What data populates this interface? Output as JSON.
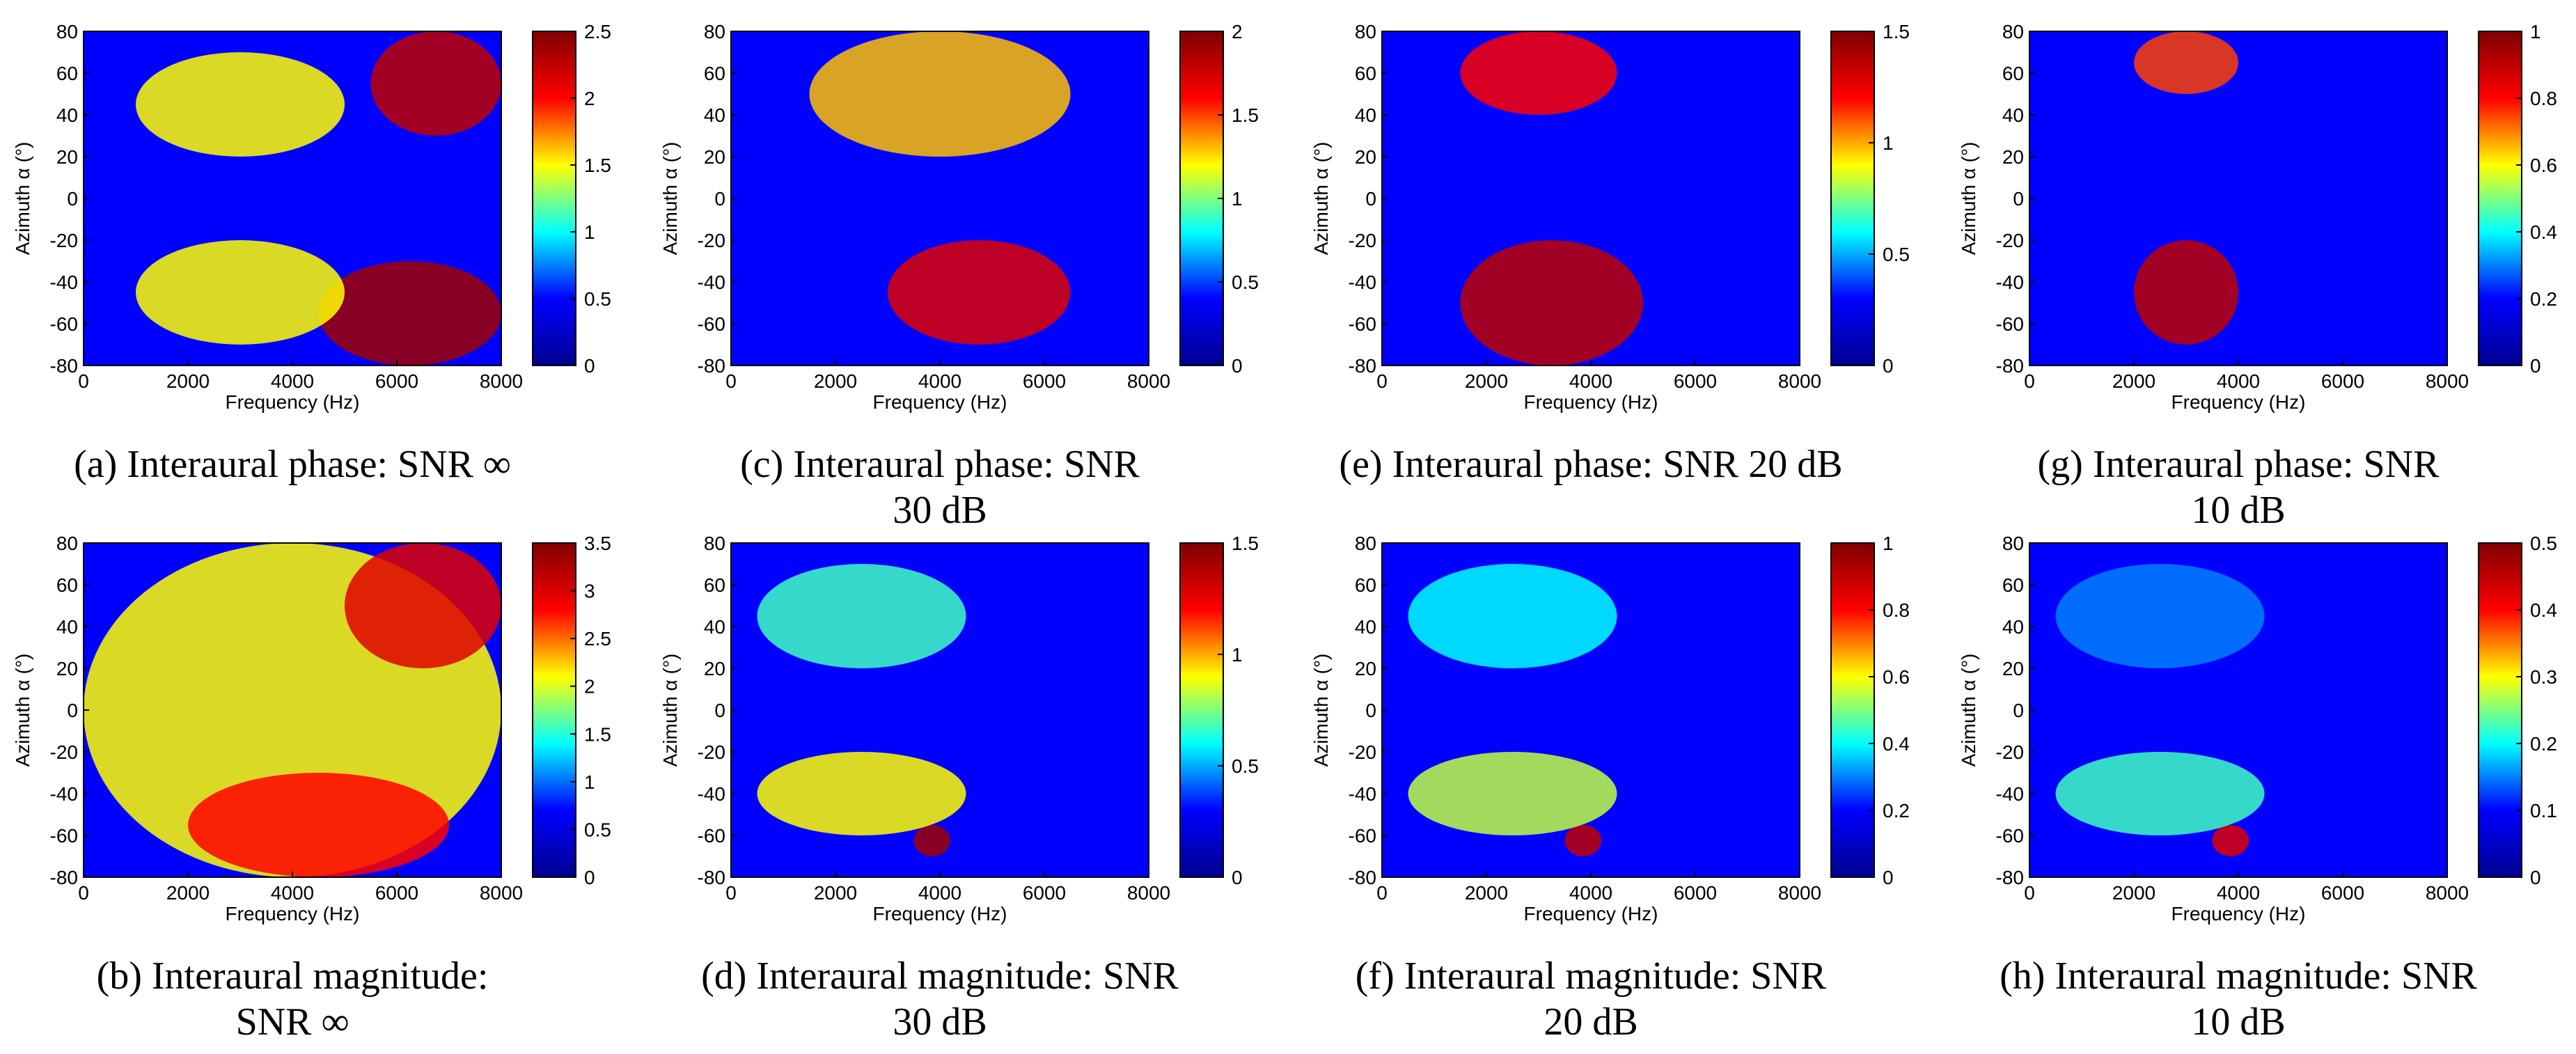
{
  "colormap": {
    "name": "jet",
    "stops": [
      "#00008f",
      "#0000ff",
      "#00ffff",
      "#ffff00",
      "#ff0000",
      "#800000"
    ]
  },
  "chart_data": [
    {
      "id": "a",
      "type": "heatmap",
      "cue": "phase",
      "snr": "inf",
      "caption_lines": [
        "(a) Interaural phase: SNR ∞"
      ],
      "xlabel": "Frequency (Hz)",
      "ylabel": "Azimuth α (°)",
      "xlim": [
        0,
        8000
      ],
      "ylim": [
        -80,
        80
      ],
      "xticks": [
        "0",
        "2000",
        "4000",
        "6000",
        "8000"
      ],
      "yticks": [
        "-80",
        "-60",
        "-40",
        "-20",
        "0",
        "20",
        "40",
        "60",
        "80"
      ],
      "clim": [
        0,
        2.5
      ],
      "cticks": [
        "0",
        "0.5",
        "1",
        "1.5",
        "2",
        "2.5"
      ],
      "hot_regions": [
        {
          "freq_hz": [
            4500,
            8000
          ],
          "azimuth_deg": [
            -80,
            -30
          ],
          "level": 0.95
        },
        {
          "freq_hz": [
            5500,
            8000
          ],
          "azimuth_deg": [
            30,
            80
          ],
          "level": 0.9
        },
        {
          "freq_hz": [
            1000,
            5000
          ],
          "azimuth_deg": [
            20,
            70
          ],
          "level": 0.6
        },
        {
          "freq_hz": [
            1000,
            5000
          ],
          "azimuth_deg": [
            -70,
            -20
          ],
          "level": 0.6
        }
      ]
    },
    {
      "id": "b",
      "type": "heatmap",
      "cue": "magnitude",
      "snr": "inf",
      "caption_lines": [
        "(b) Interaural magnitude:",
        "SNR ∞"
      ],
      "xlabel": "Frequency (Hz)",
      "ylabel": "Azimuth α (°)",
      "xlim": [
        0,
        8000
      ],
      "ylim": [
        -80,
        80
      ],
      "xticks": [
        "0",
        "2000",
        "4000",
        "6000",
        "8000"
      ],
      "yticks": [
        "-80",
        "-60",
        "-40",
        "-20",
        "0",
        "20",
        "40",
        "60",
        "80"
      ],
      "clim": [
        0,
        3.5
      ],
      "cticks": [
        "0",
        "0.5",
        "1",
        "1.5",
        "2",
        "2.5",
        "3",
        "3.5"
      ],
      "hot_regions": [
        {
          "freq_hz": [
            0,
            8000
          ],
          "azimuth_deg": [
            -80,
            80
          ],
          "level": 0.6
        },
        {
          "freq_hz": [
            5000,
            8000
          ],
          "azimuth_deg": [
            20,
            80
          ],
          "level": 0.85
        },
        {
          "freq_hz": [
            2000,
            7000
          ],
          "azimuth_deg": [
            -80,
            -30
          ],
          "level": 0.8
        }
      ]
    },
    {
      "id": "c",
      "type": "heatmap",
      "cue": "phase",
      "snr": "30 dB",
      "caption_lines": [
        "(c) Interaural phase: SNR",
        "30 dB"
      ],
      "xlabel": "Frequency (Hz)",
      "ylabel": "Azimuth α (°)",
      "xlim": [
        0,
        8000
      ],
      "ylim": [
        -80,
        80
      ],
      "xticks": [
        "0",
        "2000",
        "4000",
        "6000",
        "8000"
      ],
      "yticks": [
        "-80",
        "-60",
        "-40",
        "-20",
        "0",
        "20",
        "40",
        "60",
        "80"
      ],
      "clim": [
        0,
        2
      ],
      "cticks": [
        "0",
        "0.5",
        "1",
        "1.5",
        "2"
      ],
      "hot_regions": [
        {
          "freq_hz": [
            3000,
            6500
          ],
          "azimuth_deg": [
            -70,
            -20
          ],
          "level": 0.85
        },
        {
          "freq_hz": [
            1500,
            6500
          ],
          "azimuth_deg": [
            20,
            80
          ],
          "level": 0.65
        }
      ]
    },
    {
      "id": "d",
      "type": "heatmap",
      "cue": "magnitude",
      "snr": "30 dB",
      "caption_lines": [
        "(d) Interaural magnitude: SNR",
        "30 dB"
      ],
      "xlabel": "Frequency (Hz)",
      "ylabel": "Azimuth α (°)",
      "xlim": [
        0,
        8000
      ],
      "ylim": [
        -80,
        80
      ],
      "xticks": [
        "0",
        "2000",
        "4000",
        "6000",
        "8000"
      ],
      "yticks": [
        "-80",
        "-60",
        "-40",
        "-20",
        "0",
        "20",
        "40",
        "60",
        "80"
      ],
      "clim": [
        0,
        1.5
      ],
      "cticks": [
        "0",
        "0.5",
        "1",
        "1.5"
      ],
      "hot_regions": [
        {
          "freq_hz": [
            3500,
            4200
          ],
          "azimuth_deg": [
            -70,
            -55
          ],
          "level": 0.95
        },
        {
          "freq_hz": [
            500,
            4500
          ],
          "azimuth_deg": [
            -60,
            -20
          ],
          "level": 0.6
        },
        {
          "freq_hz": [
            500,
            4500
          ],
          "azimuth_deg": [
            20,
            70
          ],
          "level": 0.45
        }
      ]
    },
    {
      "id": "e",
      "type": "heatmap",
      "cue": "phase",
      "snr": "20 dB",
      "caption_lines": [
        "(e) Interaural phase: SNR 20 dB"
      ],
      "xlabel": "Frequency (Hz)",
      "ylabel": "Azimuth α (°)",
      "xlim": [
        0,
        8000
      ],
      "ylim": [
        -80,
        80
      ],
      "xticks": [
        "0",
        "2000",
        "4000",
        "6000",
        "8000"
      ],
      "yticks": [
        "-80",
        "-60",
        "-40",
        "-20",
        "0",
        "20",
        "40",
        "60",
        "80"
      ],
      "clim": [
        0,
        1.5
      ],
      "cticks": [
        "0",
        "0.5",
        "1",
        "1.5"
      ],
      "hot_regions": [
        {
          "freq_hz": [
            1500,
            5000
          ],
          "azimuth_deg": [
            -80,
            -20
          ],
          "level": 0.9
        },
        {
          "freq_hz": [
            1500,
            4500
          ],
          "azimuth_deg": [
            40,
            80
          ],
          "level": 0.8
        }
      ]
    },
    {
      "id": "f",
      "type": "heatmap",
      "cue": "magnitude",
      "snr": "20 dB",
      "caption_lines": [
        "(f) Interaural magnitude: SNR",
        "20 dB"
      ],
      "xlabel": "Frequency (Hz)",
      "ylabel": "Azimuth α (°)",
      "xlim": [
        0,
        8000
      ],
      "ylim": [
        -80,
        80
      ],
      "xticks": [
        "0",
        "2000",
        "4000",
        "6000",
        "8000"
      ],
      "yticks": [
        "-80",
        "-60",
        "-40",
        "-20",
        "0",
        "20",
        "40",
        "60",
        "80"
      ],
      "clim": [
        0,
        1
      ],
      "cticks": [
        "0",
        "0.2",
        "0.4",
        "0.6",
        "0.8",
        "1"
      ],
      "hot_regions": [
        {
          "freq_hz": [
            3500,
            4200
          ],
          "azimuth_deg": [
            -70,
            -55
          ],
          "level": 0.9
        },
        {
          "freq_hz": [
            500,
            4500
          ],
          "azimuth_deg": [
            -60,
            -20
          ],
          "level": 0.55
        },
        {
          "freq_hz": [
            500,
            4500
          ],
          "azimuth_deg": [
            20,
            70
          ],
          "level": 0.4
        }
      ]
    },
    {
      "id": "g",
      "type": "heatmap",
      "cue": "phase",
      "snr": "10 dB",
      "caption_lines": [
        "(g) Interaural phase: SNR",
        "10 dB"
      ],
      "xlabel": "Frequency (Hz)",
      "ylabel": "Azimuth α (°)",
      "xlim": [
        0,
        8000
      ],
      "ylim": [
        -80,
        80
      ],
      "xticks": [
        "0",
        "2000",
        "4000",
        "6000",
        "8000"
      ],
      "yticks": [
        "-80",
        "-60",
        "-40",
        "-20",
        "0",
        "20",
        "40",
        "60",
        "80"
      ],
      "clim": [
        0,
        1
      ],
      "cticks": [
        "0",
        "0.2",
        "0.4",
        "0.6",
        "0.8",
        "1"
      ],
      "hot_regions": [
        {
          "freq_hz": [
            2000,
            4000
          ],
          "azimuth_deg": [
            -70,
            -20
          ],
          "level": 0.9
        },
        {
          "freq_hz": [
            2000,
            4000
          ],
          "azimuth_deg": [
            50,
            80
          ],
          "level": 0.75
        }
      ]
    },
    {
      "id": "h",
      "type": "heatmap",
      "cue": "magnitude",
      "snr": "10 dB",
      "caption_lines": [
        "(h) Interaural magnitude: SNR",
        "10 dB"
      ],
      "xlabel": "Frequency (Hz)",
      "ylabel": "Azimuth α (°)",
      "xlim": [
        0,
        8000
      ],
      "ylim": [
        -80,
        80
      ],
      "xticks": [
        "0",
        "2000",
        "4000",
        "6000",
        "8000"
      ],
      "yticks": [
        "-80",
        "-60",
        "-40",
        "-20",
        "0",
        "20",
        "40",
        "60",
        "80"
      ],
      "clim": [
        0,
        0.5
      ],
      "cticks": [
        "0",
        "0.1",
        "0.2",
        "0.3",
        "0.4",
        "0.5"
      ],
      "hot_regions": [
        {
          "freq_hz": [
            3500,
            4200
          ],
          "azimuth_deg": [
            -70,
            -55
          ],
          "level": 0.85
        },
        {
          "freq_hz": [
            500,
            4500
          ],
          "azimuth_deg": [
            -60,
            -20
          ],
          "level": 0.45
        },
        {
          "freq_hz": [
            500,
            4500
          ],
          "azimuth_deg": [
            20,
            70
          ],
          "level": 0.3
        }
      ]
    }
  ]
}
